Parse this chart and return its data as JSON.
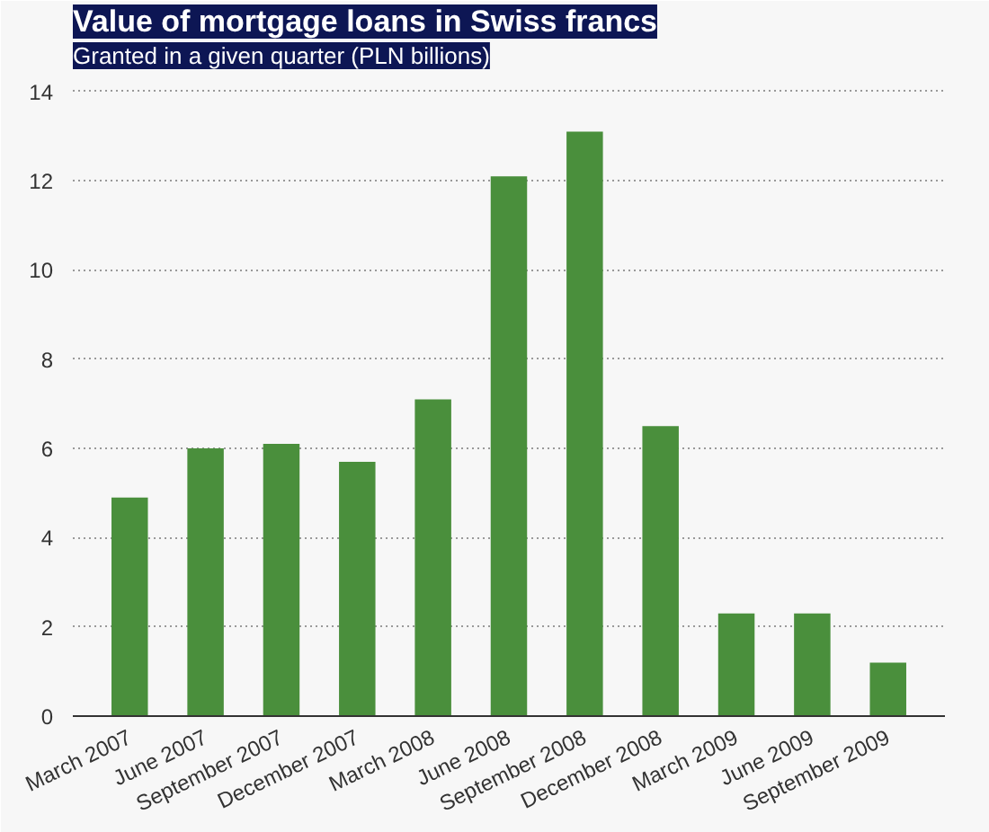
{
  "chart_data": {
    "type": "bar",
    "title": "Value of mortgage loans in Swiss francs",
    "subtitle": "Granted in a given quarter (PLN billions)",
    "categories": [
      "March 2007",
      "June 2007",
      "September 2007",
      "December 2007",
      "March 2008",
      "June 2008",
      "September 2008",
      "December 2008",
      "March 2009",
      "June 2009",
      "September 2009"
    ],
    "values": [
      4.9,
      6.0,
      6.1,
      5.7,
      7.1,
      12.1,
      13.1,
      6.5,
      2.3,
      2.3,
      1.2
    ],
    "color": "#4a8f3c",
    "ylim": [
      0,
      14.5
    ],
    "yticks": [
      0,
      2,
      4,
      6,
      8,
      10,
      12,
      14
    ],
    "grid": "y"
  }
}
